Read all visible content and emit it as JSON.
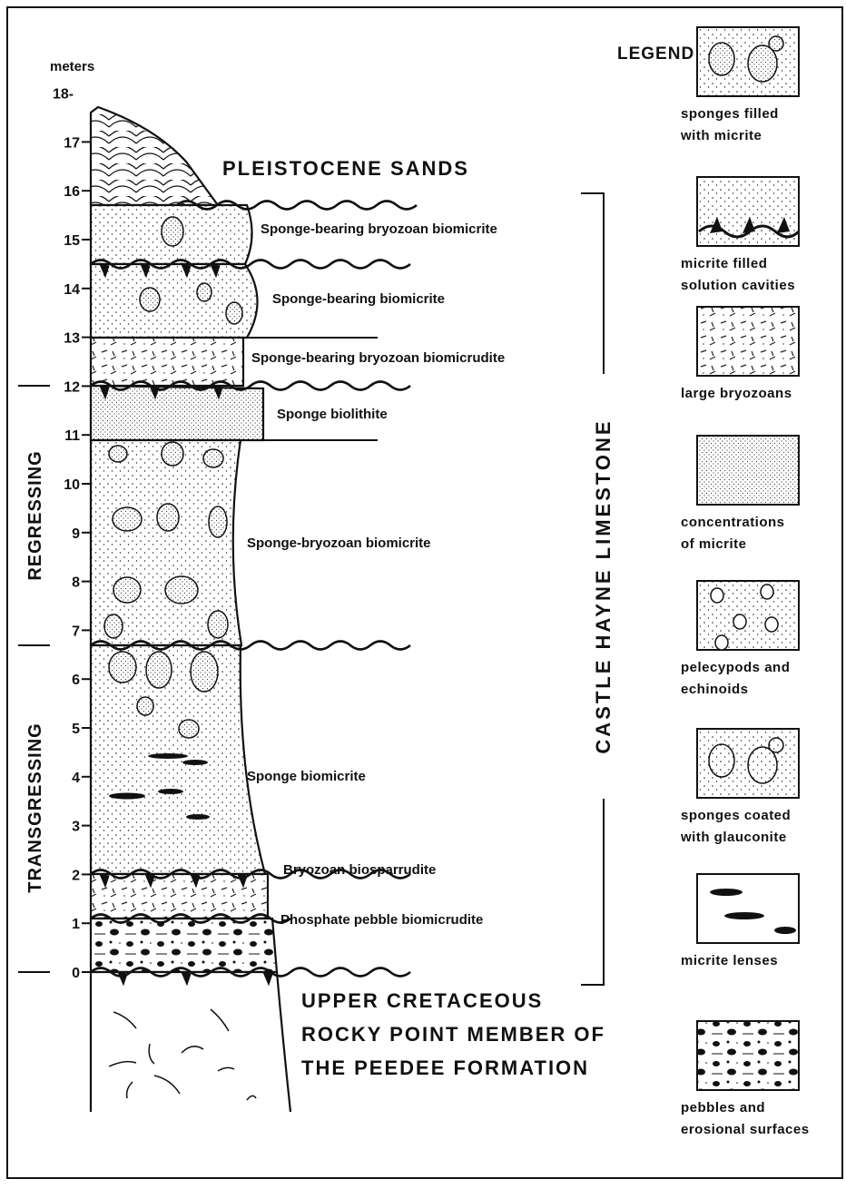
{
  "axis": {
    "unit": "meters",
    "ticks": [
      0,
      1,
      2,
      3,
      4,
      5,
      6,
      7,
      8,
      9,
      10,
      11,
      12,
      13,
      14,
      15,
      16,
      17,
      {
        "value": 18,
        "label": "18-"
      }
    ]
  },
  "phases": [
    "REGRESSING",
    "TRANSGRESSING"
  ],
  "formation": "CASTLE HAYNE LIMESTONE",
  "units": [
    "PLEISTOCENE SANDS",
    "Sponge-bearing bryozoan biomicrite",
    "Sponge-bearing biomicrite",
    "Sponge-bearing bryozoan biomicrudite",
    "Sponge biolithite",
    "Sponge-bryozoan biomicrite",
    "Sponge biomicrite",
    "Bryozoan biosparrudite",
    "Phosphate pebble biomicrudite"
  ],
  "basement": [
    "UPPER CRETACEOUS",
    "ROCKY POINT MEMBER OF",
    "THE PEEDEE FORMATION"
  ],
  "legend": {
    "title": "LEGEND",
    "items": [
      [
        "sponges filled",
        "with micrite"
      ],
      [
        "micrite filled",
        "solution cavities"
      ],
      [
        "large bryozoans"
      ],
      [
        "concentrations",
        "of micrite"
      ],
      [
        "pelecypods and",
        "echinoids"
      ],
      [
        "sponges coated",
        "with glauconite"
      ],
      [
        "micrite lenses"
      ],
      [
        "pebbles and",
        "erosional surfaces"
      ]
    ]
  }
}
